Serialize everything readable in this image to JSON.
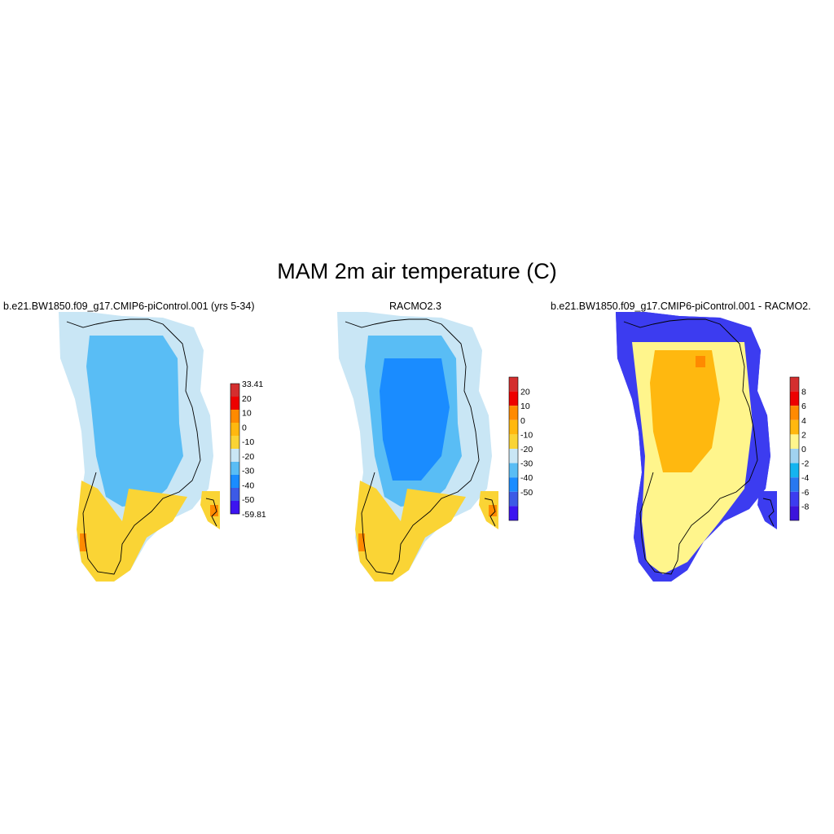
{
  "title": "MAM 2m air temperature (C)",
  "panels": [
    {
      "title": "b.e21.BW1850.f09_g17.CMIP6-piControl.001 (yrs 5-34)",
      "colorbar": {
        "labels": [
          "33.41",
          "20",
          "10",
          "0",
          "-10",
          "-20",
          "-30",
          "-40",
          "-50",
          "-59.81"
        ],
        "colors": [
          "#d42e2e",
          "#ee0000",
          "#ff8a00",
          "#ffb80f",
          "#fad435",
          "#c9e6f5",
          "#59bdf5",
          "#1a8cff",
          "#3c5ae6",
          "#3c14f0"
        ]
      },
      "map_fills": {
        "coast": "#c9e6f5",
        "interior": "#59bdf5",
        "south_warm": "#fad435",
        "south_hot": "#ff8a00",
        "core": "#59bdf5"
      }
    },
    {
      "title": "RACMO2.3",
      "colorbar": {
        "labels": [
          "20",
          "10",
          "0",
          "-10",
          "-20",
          "-30",
          "-40",
          "-50"
        ],
        "colors": [
          "#d42e2e",
          "#ee0000",
          "#ff8a00",
          "#ffb80f",
          "#fad435",
          "#c9e6f5",
          "#59bdf5",
          "#1a8cff",
          "#3c5ae6",
          "#3c14f0"
        ]
      },
      "map_fills": {
        "coast": "#c9e6f5",
        "interior": "#59bdf5",
        "south_warm": "#fad435",
        "south_hot": "#ff8a00",
        "core": "#1a8cff"
      }
    },
    {
      "title": "b.e21.BW1850.f09_g17.CMIP6-piControl.001 - RACMO2.",
      "colorbar": {
        "labels": [
          "8",
          "6",
          "4",
          "2",
          "0",
          "-2",
          "-4",
          "-6",
          "-8"
        ],
        "colors": [
          "#d42e2e",
          "#ee0000",
          "#ff8a00",
          "#ffb80f",
          "#fff58c",
          "#a0d2f0",
          "#14b4f0",
          "#2878f0",
          "#3c3cf0",
          "#3c14dc"
        ]
      },
      "map_fills": {
        "coast": "#3c3cf0",
        "interior": "#fff58c",
        "north": "#ffb80f",
        "south_edge": "#fff58c",
        "hot_spot": "#ff8a00"
      }
    }
  ]
}
